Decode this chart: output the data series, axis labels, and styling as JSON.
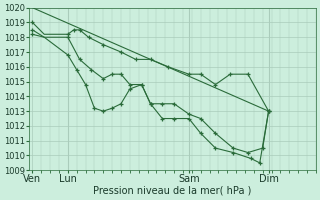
{
  "xlabel": "Pression niveau de la mer( hPa )",
  "ylim": [
    1009,
    1020
  ],
  "background_color": "#cceedd",
  "grid_color": "#aaccbb",
  "line_color": "#2a6b3a",
  "xtick_labels": [
    "Ven",
    "Lun",
    "Sam",
    "Dim"
  ],
  "xtick_pos": [
    0,
    12,
    53,
    80
  ],
  "xlim": [
    -1,
    96
  ],
  "figsize": [
    3.2,
    2.0
  ],
  "dpi": 100,
  "line1_x": [
    0,
    80
  ],
  "line1_y": [
    1020.0,
    1013.0
  ],
  "line2_x": [
    0,
    4,
    12,
    14,
    16,
    19,
    24,
    30,
    35,
    40,
    46,
    53,
    57,
    62,
    67,
    73,
    80
  ],
  "line2_y": [
    1019.0,
    1018.2,
    1018.2,
    1018.5,
    1018.5,
    1018.0,
    1017.5,
    1017.0,
    1016.5,
    1016.5,
    1016.0,
    1015.5,
    1015.5,
    1014.8,
    1015.5,
    1015.5,
    1013.0
  ],
  "line2_markers_x": [
    0,
    12,
    14,
    16,
    19,
    24,
    30,
    35,
    40,
    46,
    53,
    57,
    62,
    67,
    73,
    80
  ],
  "line2_markers_y": [
    1019.0,
    1018.2,
    1018.5,
    1018.5,
    1018.0,
    1017.5,
    1017.0,
    1016.5,
    1016.5,
    1016.0,
    1015.5,
    1015.5,
    1014.8,
    1015.5,
    1015.5,
    1013.0
  ],
  "line3_x": [
    0,
    4,
    12,
    16,
    20,
    24,
    27,
    30,
    33,
    37,
    40,
    44,
    48,
    53,
    57,
    62,
    68,
    73,
    78,
    80
  ],
  "line3_y": [
    1018.5,
    1018.0,
    1018.0,
    1016.5,
    1015.8,
    1015.2,
    1015.5,
    1015.5,
    1014.8,
    1014.8,
    1013.5,
    1013.5,
    1013.5,
    1012.8,
    1012.5,
    1011.5,
    1010.5,
    1010.2,
    1010.5,
    1013.0
  ],
  "line3_markers_x": [
    0,
    12,
    16,
    20,
    24,
    27,
    30,
    33,
    37,
    40,
    44,
    48,
    53,
    57,
    62,
    68,
    73,
    78,
    80
  ],
  "line3_markers_y": [
    1018.5,
    1018.0,
    1016.5,
    1015.8,
    1015.2,
    1015.5,
    1015.5,
    1014.8,
    1014.8,
    1013.5,
    1013.5,
    1013.5,
    1012.8,
    1012.5,
    1011.5,
    1010.5,
    1010.2,
    1010.5,
    1013.0
  ],
  "line4_x": [
    0,
    4,
    12,
    15,
    18,
    21,
    24,
    27,
    30,
    33,
    37,
    40,
    44,
    48,
    53,
    57,
    62,
    68,
    74,
    77,
    80
  ],
  "line4_y": [
    1018.2,
    1018.0,
    1016.8,
    1015.8,
    1014.8,
    1013.2,
    1013.0,
    1013.2,
    1013.5,
    1014.5,
    1014.8,
    1013.5,
    1012.5,
    1012.5,
    1012.5,
    1011.5,
    1010.5,
    1010.2,
    1009.8,
    1009.5,
    1013.0
  ],
  "line4_markers_x": [
    0,
    12,
    15,
    18,
    21,
    24,
    27,
    30,
    33,
    37,
    40,
    44,
    48,
    53,
    57,
    62,
    68,
    74,
    77,
    80
  ],
  "line4_markers_y": [
    1018.2,
    1016.8,
    1015.8,
    1014.8,
    1013.2,
    1013.0,
    1013.2,
    1013.5,
    1014.5,
    1014.8,
    1013.5,
    1012.5,
    1012.5,
    1012.5,
    1011.5,
    1010.5,
    1010.2,
    1009.8,
    1009.5,
    1013.0
  ]
}
